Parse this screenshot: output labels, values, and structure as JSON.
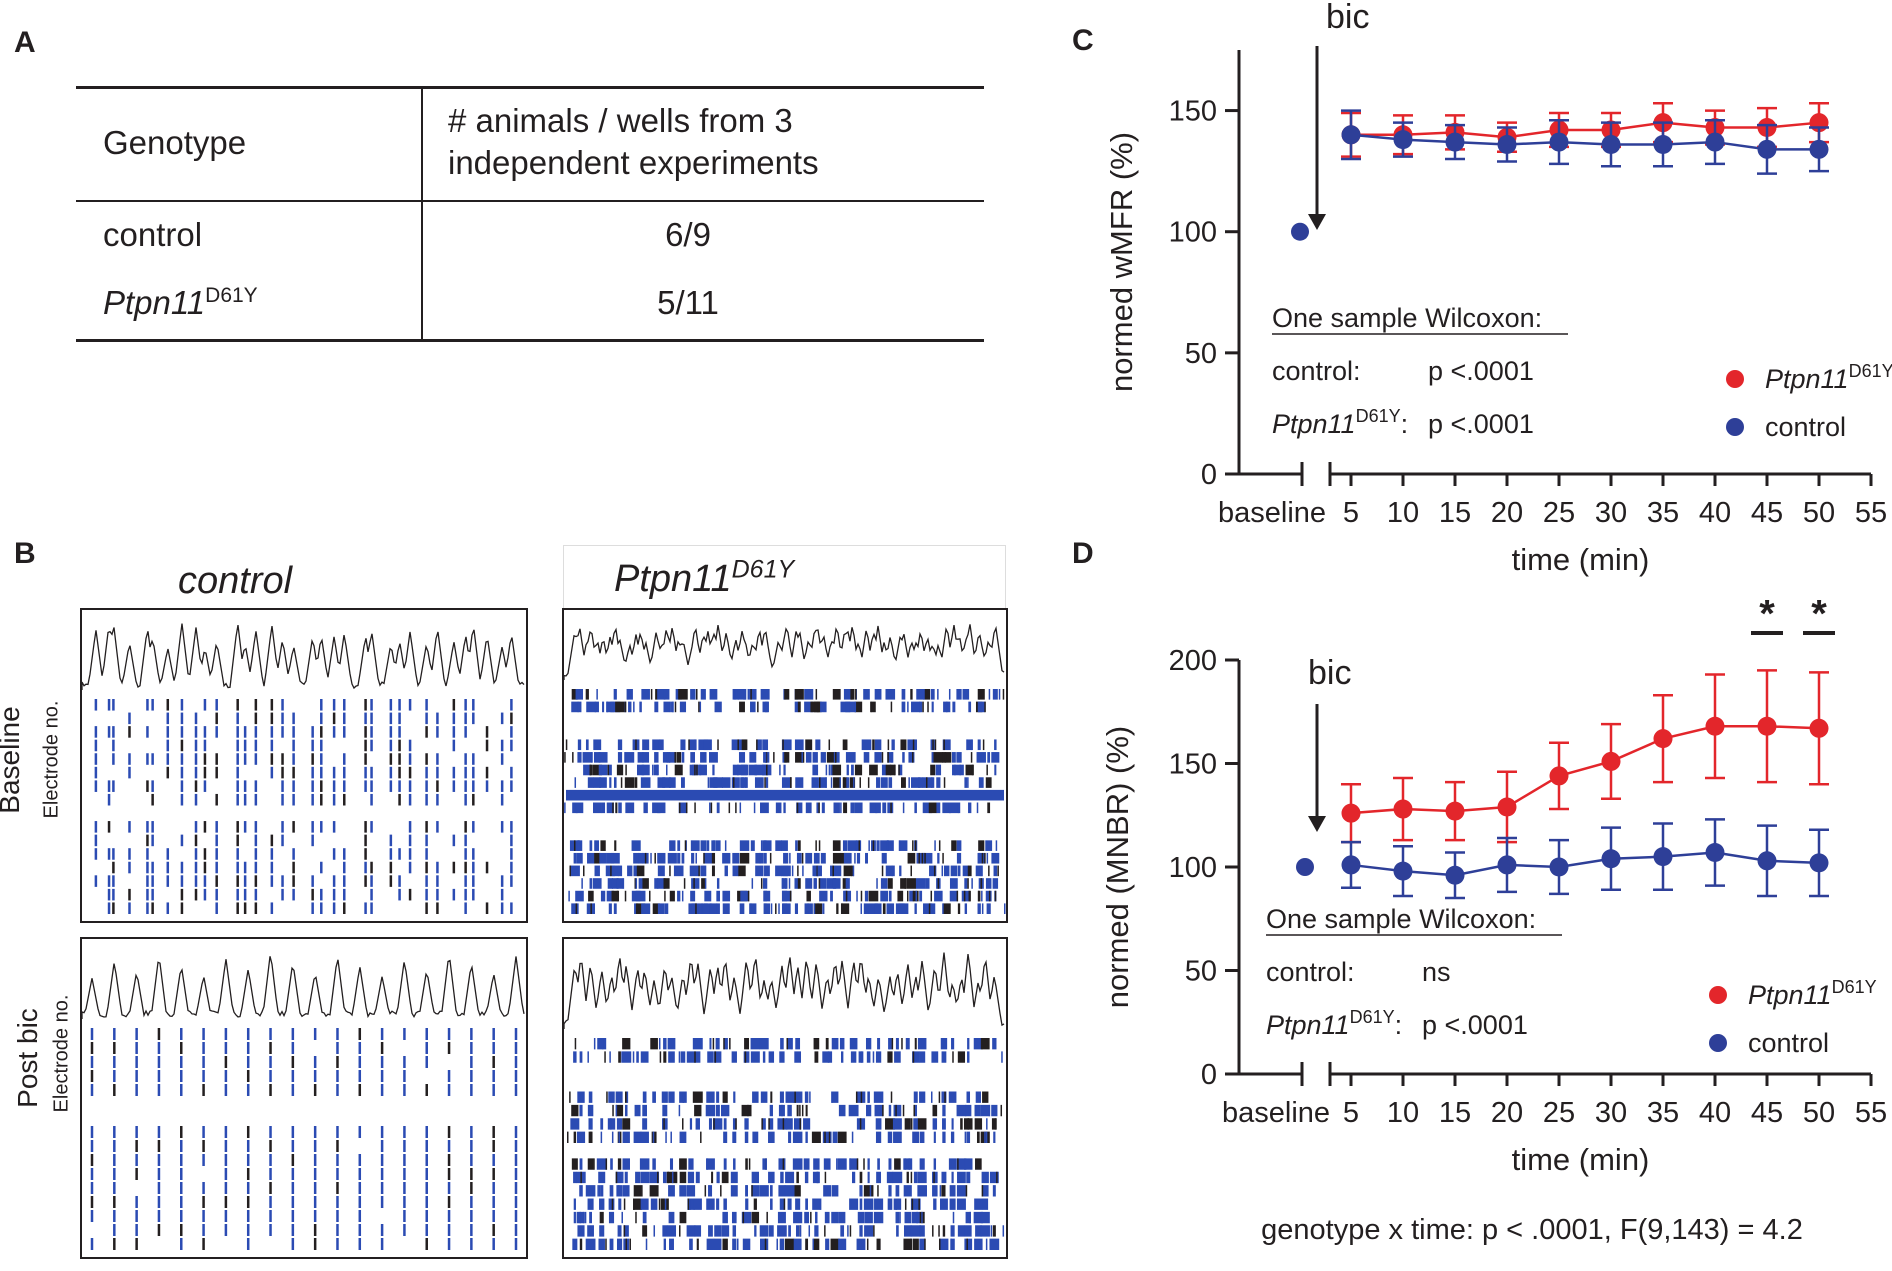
{
  "panel_labels": {
    "a": "A",
    "b": "B",
    "c": "C",
    "d": "D"
  },
  "table": {
    "header_genotype": "Genotype",
    "header_counts": "# animals / wells from 3 independent experiments",
    "rows": [
      {
        "genotype": "control",
        "genotype_sup": "",
        "counts": "6/9"
      },
      {
        "genotype": "Ptpn11",
        "genotype_sup": "D61Y",
        "counts": "5/11"
      }
    ]
  },
  "raster": {
    "title_control": "control",
    "title_mutant": "Ptpn11",
    "title_mutant_sup": "D61Y",
    "row_baseline": "Baseline",
    "row_postbic": "Post bic",
    "electrode_label": "Electrode no."
  },
  "colors": {
    "red": "#e3262b",
    "blue": "#2e3f98",
    "raster_blue": "#2b4bb3",
    "black": "#231f20"
  },
  "chart_data": [
    {
      "id": "C",
      "type": "line",
      "title": "",
      "xlabel": "time (min)",
      "ylabel": "normed wMFR (%)",
      "ylim": [
        0,
        175
      ],
      "yticks": [
        0,
        50,
        100,
        150
      ],
      "xticks": [
        5,
        10,
        15,
        20,
        25,
        30,
        35,
        40,
        45,
        50,
        55
      ],
      "xlim": [
        0,
        55
      ],
      "baseline_label": "baseline",
      "baseline_value": 100,
      "arrow_label": "bic",
      "x": [
        5,
        10,
        15,
        20,
        25,
        30,
        35,
        40,
        45,
        50
      ],
      "series": [
        {
          "name": "Ptpn11",
          "name_sup": "D61Y",
          "color": "#e3262b",
          "values": [
            140,
            140,
            141,
            139,
            142,
            142,
            145,
            143,
            143,
            145
          ],
          "errors": [
            9,
            8,
            7,
            6,
            7,
            7,
            8,
            7,
            8,
            8
          ]
        },
        {
          "name": "control",
          "name_sup": "",
          "color": "#2e3f98",
          "values": [
            140,
            138,
            137,
            136,
            137,
            136,
            136,
            137,
            134,
            134
          ],
          "errors": [
            10,
            7,
            7,
            7,
            9,
            9,
            9,
            9,
            10,
            9
          ]
        }
      ],
      "stats": {
        "heading": "One sample Wilcoxon:",
        "control_label": "control:",
        "control_value": "p <.0001",
        "mutant_label": "Ptpn11",
        "mutant_sup": "D61Y",
        "mutant_colon": ":",
        "mutant_value": "p <.0001"
      }
    },
    {
      "id": "D",
      "type": "line",
      "title": "",
      "xlabel": "time (min)",
      "ylabel": "normed (MNBR) (%)",
      "ylim": [
        0,
        200
      ],
      "yticks": [
        0,
        50,
        100,
        150,
        200
      ],
      "xticks": [
        5,
        10,
        15,
        20,
        25,
        30,
        35,
        40,
        45,
        50,
        55
      ],
      "xlim": [
        0,
        55
      ],
      "baseline_label": "baseline",
      "baseline_value": 100,
      "arrow_label": "bic",
      "x": [
        5,
        10,
        15,
        20,
        25,
        30,
        35,
        40,
        45,
        50
      ],
      "series": [
        {
          "name": "Ptpn11",
          "name_sup": "D61Y",
          "color": "#e3262b",
          "values": [
            126,
            128,
            127,
            129,
            144,
            151,
            162,
            168,
            168,
            167
          ],
          "errors": [
            14,
            15,
            14,
            17,
            16,
            18,
            21,
            25,
            27,
            27
          ]
        },
        {
          "name": "control",
          "name_sup": "",
          "color": "#2e3f98",
          "values": [
            101,
            98,
            96,
            101,
            100,
            104,
            105,
            107,
            103,
            102
          ],
          "errors": [
            11,
            12,
            11,
            13,
            13,
            15,
            16,
            16,
            17,
            16
          ]
        }
      ],
      "significance": [
        {
          "x": 45,
          "label": "*"
        },
        {
          "x": 50,
          "label": "*"
        }
      ],
      "stats": {
        "heading": "One sample Wilcoxon:",
        "control_label": "control:",
        "control_value": "ns",
        "mutant_label": "Ptpn11",
        "mutant_sup": "D61Y",
        "mutant_colon": ":",
        "mutant_value": "p <.0001"
      },
      "footer": "genotype x time: p < .0001, F(9,143) = 4.2"
    }
  ]
}
